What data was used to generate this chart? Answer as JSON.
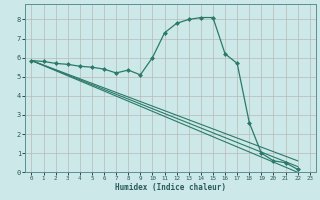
{
  "title": "",
  "xlabel": "Humidex (Indice chaleur)",
  "bg_color": "#cce8e8",
  "grid_color": "#b8b8b8",
  "line_color": "#2a7a6a",
  "xlim": [
    -0.5,
    23.5
  ],
  "ylim": [
    0,
    8.8
  ],
  "xticks": [
    0,
    1,
    2,
    3,
    4,
    5,
    6,
    7,
    8,
    9,
    10,
    11,
    12,
    13,
    14,
    15,
    16,
    17,
    18,
    19,
    20,
    21,
    22,
    23
  ],
  "yticks": [
    0,
    1,
    2,
    3,
    4,
    5,
    6,
    7,
    8
  ],
  "series": [
    {
      "x": [
        0,
        1,
        2,
        3,
        4,
        5,
        6,
        7,
        8,
        9,
        10,
        11,
        12,
        13,
        14,
        15,
        16,
        17,
        18,
        19,
        20,
        21,
        22
      ],
      "y": [
        5.85,
        5.8,
        5.7,
        5.65,
        5.55,
        5.5,
        5.4,
        5.2,
        5.35,
        5.1,
        6.0,
        7.3,
        7.8,
        8.0,
        8.1,
        8.1,
        6.2,
        5.7,
        2.6,
        1.0,
        0.6,
        0.5,
        0.15
      ],
      "marker": "D",
      "markersize": 2.0,
      "linewidth": 0.9
    },
    {
      "x": [
        0,
        22
      ],
      "y": [
        5.85,
        0.0
      ],
      "marker": null,
      "linewidth": 0.8
    },
    {
      "x": [
        0,
        22
      ],
      "y": [
        5.85,
        0.3
      ],
      "marker": null,
      "linewidth": 0.8
    },
    {
      "x": [
        0,
        22
      ],
      "y": [
        5.85,
        0.6
      ],
      "marker": null,
      "linewidth": 0.8
    }
  ]
}
